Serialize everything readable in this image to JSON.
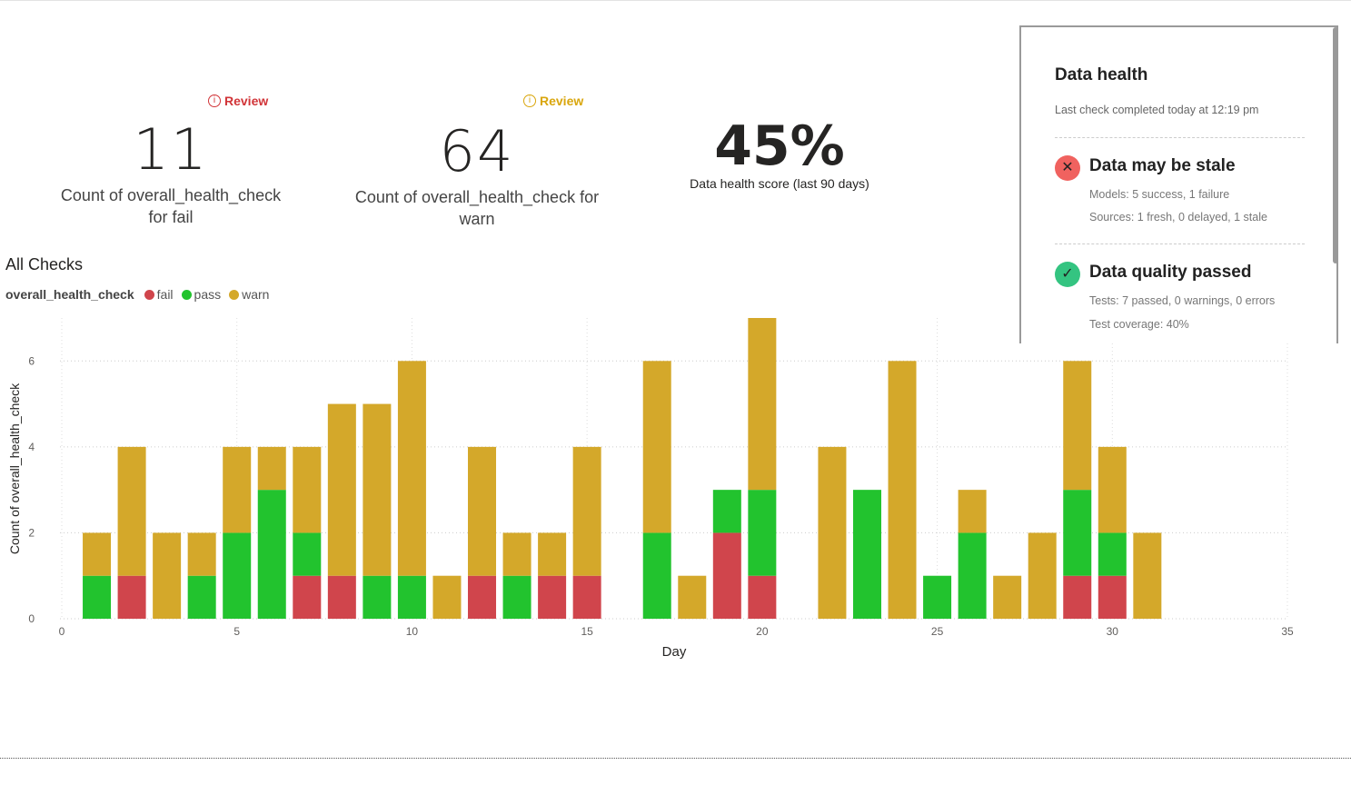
{
  "kpis": {
    "fail": {
      "review": "Review",
      "value": "11",
      "caption_line1": "Count of overall_health_check",
      "caption_line2": "for fail",
      "color": "#d13438"
    },
    "warn": {
      "review": "Review",
      "value": "64",
      "caption_line1": "Count of overall_health_check for",
      "caption_line2": "warn",
      "color": "#d9a60c"
    },
    "score": {
      "value": "45%",
      "caption": "Data health score (last 90 days)"
    }
  },
  "panel": {
    "title": "Data health",
    "subtitle": "Last check completed today at 12:19 pm",
    "stale": {
      "title": "Data may be stale",
      "line1": "Models: 5 success, 1 failure",
      "line2": "Sources: 1 fresh, 0 delayed, 1 stale",
      "icon": "x-circle-icon",
      "color": "#f0625f"
    },
    "quality": {
      "title": "Data quality passed",
      "line1": "Tests: 7 passed, 0 warnings, 0 errors",
      "line2": "Test coverage: 40%",
      "icon": "check-circle-icon",
      "color": "#34c481"
    }
  },
  "chart_data": {
    "type": "bar",
    "stacked": true,
    "title": "All Checks",
    "legend_title": "overall_health_check",
    "legend_position": "top-left",
    "xlabel": "Day",
    "ylabel": "Count of overall_health_check",
    "xlim": [
      0,
      35
    ],
    "ylim": [
      0,
      7
    ],
    "xticks": [
      "0",
      "5",
      "10",
      "15",
      "20",
      "25",
      "30",
      "35"
    ],
    "yticks": [
      "0",
      "2",
      "4",
      "6"
    ],
    "grid": true,
    "x": [
      1,
      2,
      3,
      4,
      5,
      6,
      7,
      8,
      9,
      10,
      11,
      12,
      13,
      14,
      15,
      16,
      17,
      18,
      19,
      20,
      21,
      22,
      23,
      24,
      25,
      26,
      27,
      28,
      29,
      30,
      31
    ],
    "series": [
      {
        "name": "fail",
        "color": "#d0454c",
        "values": [
          0,
          1,
          0,
          0,
          0,
          0,
          1,
          1,
          0,
          0,
          0,
          1,
          0,
          1,
          1,
          0,
          0,
          0,
          2,
          1,
          0,
          0,
          0,
          0,
          0,
          0,
          0,
          0,
          1,
          1,
          0
        ]
      },
      {
        "name": "pass",
        "color": "#22c32e",
        "values": [
          1,
          0,
          0,
          1,
          2,
          3,
          1,
          0,
          1,
          1,
          0,
          0,
          1,
          0,
          0,
          0,
          2,
          0,
          1,
          2,
          0,
          0,
          3,
          0,
          1,
          2,
          0,
          0,
          2,
          1,
          0
        ]
      },
      {
        "name": "warn",
        "color": "#d4a82a",
        "values": [
          1,
          3,
          2,
          1,
          2,
          1,
          2,
          4,
          4,
          5,
          1,
          3,
          1,
          1,
          3,
          0,
          4,
          1,
          0,
          4,
          0,
          4,
          0,
          6,
          0,
          1,
          1,
          2,
          3,
          2,
          2
        ]
      }
    ]
  }
}
